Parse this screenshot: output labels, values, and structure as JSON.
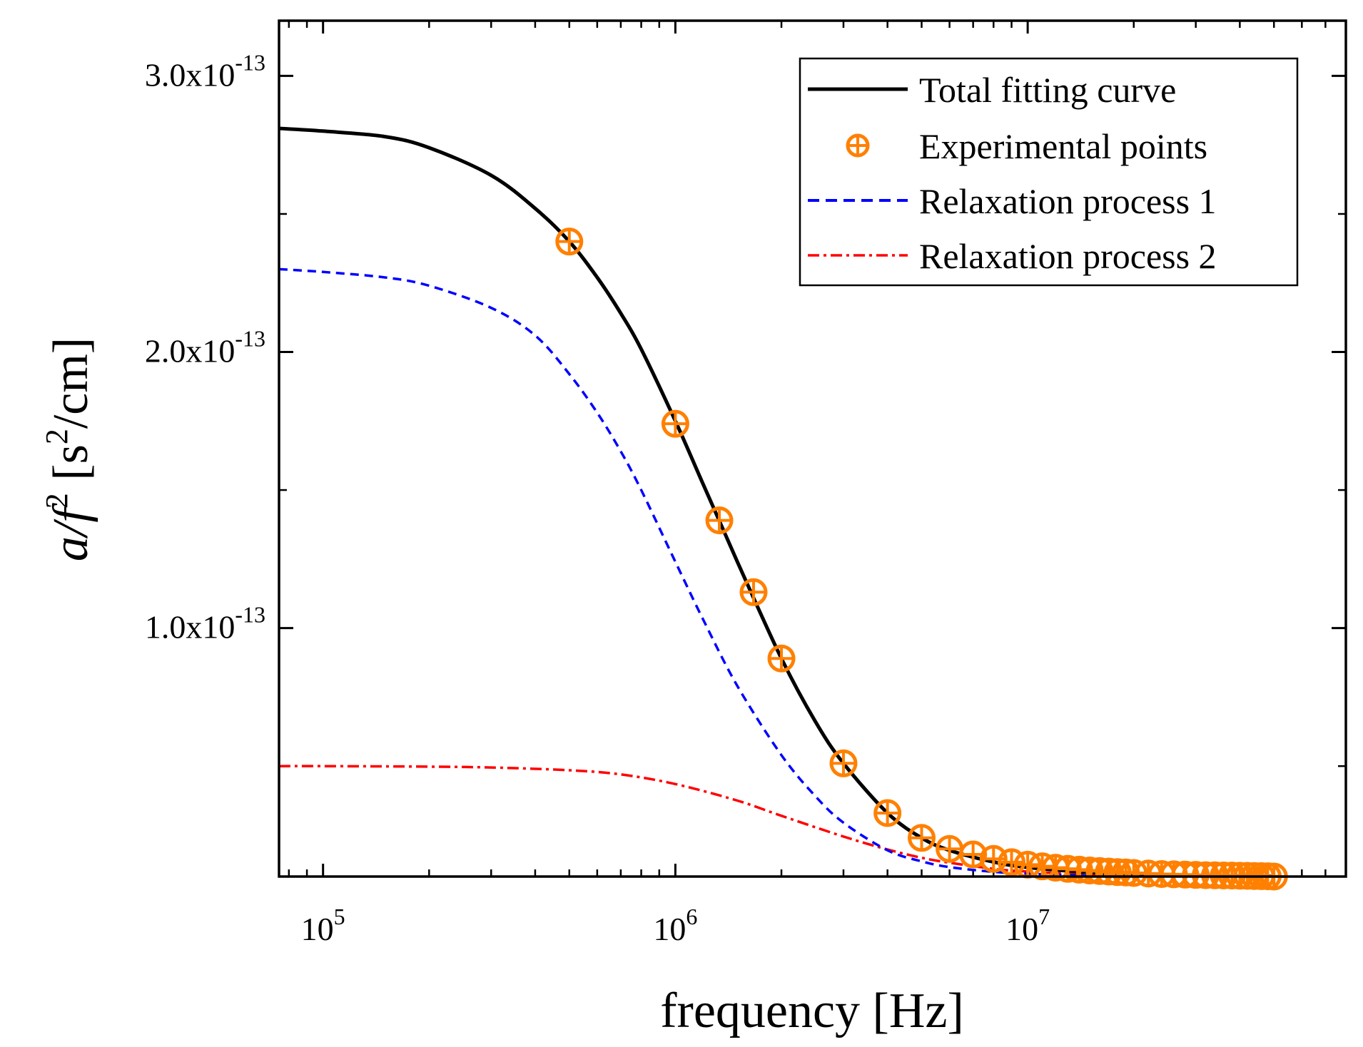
{
  "chart_data": {
    "type": "line",
    "title": "",
    "xlabel": "frequency [Hz]",
    "ylabel": {
      "pre": "a/f",
      "exp": "2",
      "unit_open": " [s",
      "unit_exp": "2",
      "unit_close": "/cm]"
    },
    "xscale": "log",
    "xlim": [
      75000,
      80000000
    ],
    "ylim": [
      1e-14,
      3.2e-13
    ],
    "x_ticks": [
      {
        "value": 100000,
        "base": "10",
        "exp": "5"
      },
      {
        "value": 1000000,
        "base": "10",
        "exp": "6"
      },
      {
        "value": 10000000,
        "base": "10",
        "exp": "7"
      }
    ],
    "y_ticks": [
      {
        "value": 1e-13,
        "mantissa": "1.0x10",
        "exp": "-13"
      },
      {
        "value": 2e-13,
        "mantissa": "2.0x10",
        "exp": "-13"
      },
      {
        "value": 3e-13,
        "mantissa": "3.0x10",
        "exp": "-13"
      }
    ],
    "y_minor_ticks": [
      5e-14,
      1.5e-13,
      2.5e-13
    ],
    "legend_position": "top-right",
    "colors": {
      "total": "#000000",
      "experimental": "#ff8000",
      "process1": "#0000ff",
      "process2": "#ff0000"
    },
    "series": [
      {
        "name": "Total fitting curve",
        "style": "solid",
        "x": [
          75000,
          100000,
          150000,
          200000,
          300000,
          400000,
          500000,
          600000,
          700000,
          800000,
          1000000,
          1200000,
          1500000,
          2000000,
          2500000,
          3000000,
          4000000,
          5000000,
          6000000,
          8000000,
          10000000,
          15000000,
          20000000,
          30000000,
          50000000
        ],
        "values": [
          2.81e-13,
          2.8e-13,
          2.78e-13,
          2.74e-13,
          2.64e-13,
          2.52e-13,
          2.4e-13,
          2.27e-13,
          2.14e-13,
          2.01e-13,
          1.75e-13,
          1.52e-13,
          1.24e-13,
          8.9e-14,
          6.6e-14,
          5.1e-14,
          3.3e-14,
          2.4e-14,
          1.95e-14,
          1.53e-14,
          1.33e-14,
          1.15e-14,
          1.09e-14,
          1.04e-14,
          1.01e-14
        ]
      },
      {
        "name": "Experimental points",
        "style": "marker",
        "x": [
          500000,
          1000000,
          1333000,
          1667000,
          2000000,
          3000000,
          4000000,
          5000000,
          6000000,
          7000000,
          8000000,
          9000000,
          10000000,
          11000000,
          12000000,
          13000000,
          14000000,
          15000000,
          16000000,
          17000000,
          18000000,
          19000000,
          20000000,
          22000000,
          24000000,
          26000000,
          28000000,
          30000000,
          32000000,
          34000000,
          36000000,
          38000000,
          40000000,
          42000000,
          44000000,
          46000000,
          48000000,
          50000000
        ],
        "values": [
          2.4e-13,
          1.74e-13,
          1.39e-13,
          1.13e-13,
          8.9e-14,
          5.1e-14,
          3.3e-14,
          2.4e-14,
          2e-14,
          1.8e-14,
          1.64e-14,
          1.52e-14,
          1.43e-14,
          1.37e-14,
          1.32e-14,
          1.28e-14,
          1.25e-14,
          1.22e-14,
          1.2e-14,
          1.18e-14,
          1.16e-14,
          1.15e-14,
          1.13e-14,
          1.11e-14,
          1.09e-14,
          1.08e-14,
          1.07e-14,
          1.06e-14,
          1.05e-14,
          1.045e-14,
          1.04e-14,
          1.035e-14,
          1.03e-14,
          1.025e-14,
          1.02e-14,
          1.015e-14,
          1.01e-14,
          1e-14
        ]
      },
      {
        "name": "Relaxation process 1",
        "style": "dashed",
        "x": [
          75000,
          100000,
          150000,
          200000,
          300000,
          400000,
          500000,
          600000,
          700000,
          800000,
          1000000,
          1200000,
          1500000,
          2000000,
          2500000,
          3000000,
          4000000,
          5000000,
          6000000,
          8000000,
          10000000,
          15000000,
          20000000,
          30000000,
          50000000
        ],
        "values": [
          2.3e-13,
          2.29e-13,
          2.27e-13,
          2.24e-13,
          2.16e-13,
          2.06e-13,
          1.92e-13,
          1.78e-13,
          1.64e-13,
          1.5e-13,
          1.24e-13,
          1.03e-13,
          7.9e-14,
          5.4e-14,
          3.9e-14,
          2.95e-14,
          1.95e-14,
          1.55e-14,
          1.34e-14,
          1.17e-14,
          1.1e-14,
          1.04e-14,
          1.02e-14,
          1.01e-14,
          1e-14
        ]
      },
      {
        "name": "Relaxation process 2",
        "style": "dash-dot",
        "x": [
          75000,
          100000,
          200000,
          300000,
          500000,
          700000,
          1000000,
          1500000,
          2000000,
          3000000,
          4000000,
          5000000,
          6000000,
          8000000,
          10000000,
          15000000,
          20000000,
          30000000,
          50000000
        ],
        "values": [
          5e-14,
          5e-14,
          4.98e-14,
          4.95e-14,
          4.85e-14,
          4.7e-14,
          4.35e-14,
          3.75e-14,
          3.2e-14,
          2.45e-14,
          1.98e-14,
          1.68e-14,
          1.5e-14,
          1.28e-14,
          1.18e-14,
          1.07e-14,
          1.04e-14,
          1.02e-14,
          1.01e-14
        ]
      }
    ]
  }
}
